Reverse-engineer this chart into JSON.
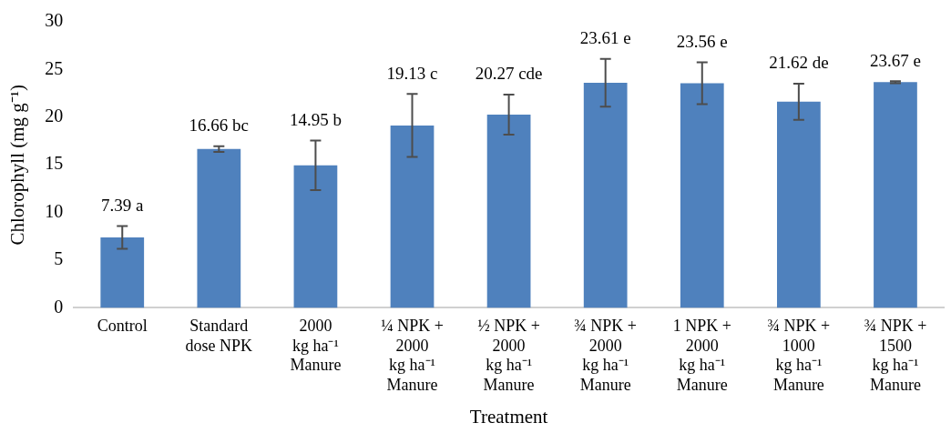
{
  "chart_data": {
    "type": "bar",
    "xlabel": "Treatment",
    "ylabel": "Chlorophyll (mg g⁻¹)",
    "categories": [
      "Control",
      "Standard\ndose NPK",
      "2000\nkg ha⁻¹\nManure",
      "¼ NPK +\n2000\nkg ha⁻¹\nManure",
      "½ NPK +\n2000\nkg ha⁻¹\nManure",
      "¾ NPK +\n2000\nkg ha⁻¹\nManure",
      "1 NPK +\n2000\nkg ha⁻¹\nManure",
      "¾ NPK +\n1000\nkg ha⁻¹\nManure",
      "¾ NPK +\n1500\nkg ha⁻¹\nManure"
    ],
    "values": [
      7.39,
      16.66,
      14.95,
      19.13,
      20.27,
      23.61,
      23.56,
      21.62,
      23.67
    ],
    "errors": [
      1.2,
      0.3,
      2.6,
      3.3,
      2.1,
      2.5,
      2.2,
      1.9,
      0.1
    ],
    "value_labels": [
      "7.39 a",
      "16.66 bc",
      "14.95 b",
      "19.13 c",
      "20.27 cde",
      "23.61 e",
      "23.56 e",
      "21.62 de",
      "23.67 e"
    ],
    "color": "#4f81bd",
    "ylim": [
      0,
      30
    ],
    "yticks": [
      0,
      5,
      10,
      15,
      20,
      25,
      30
    ],
    "grid": false,
    "legend": false
  }
}
